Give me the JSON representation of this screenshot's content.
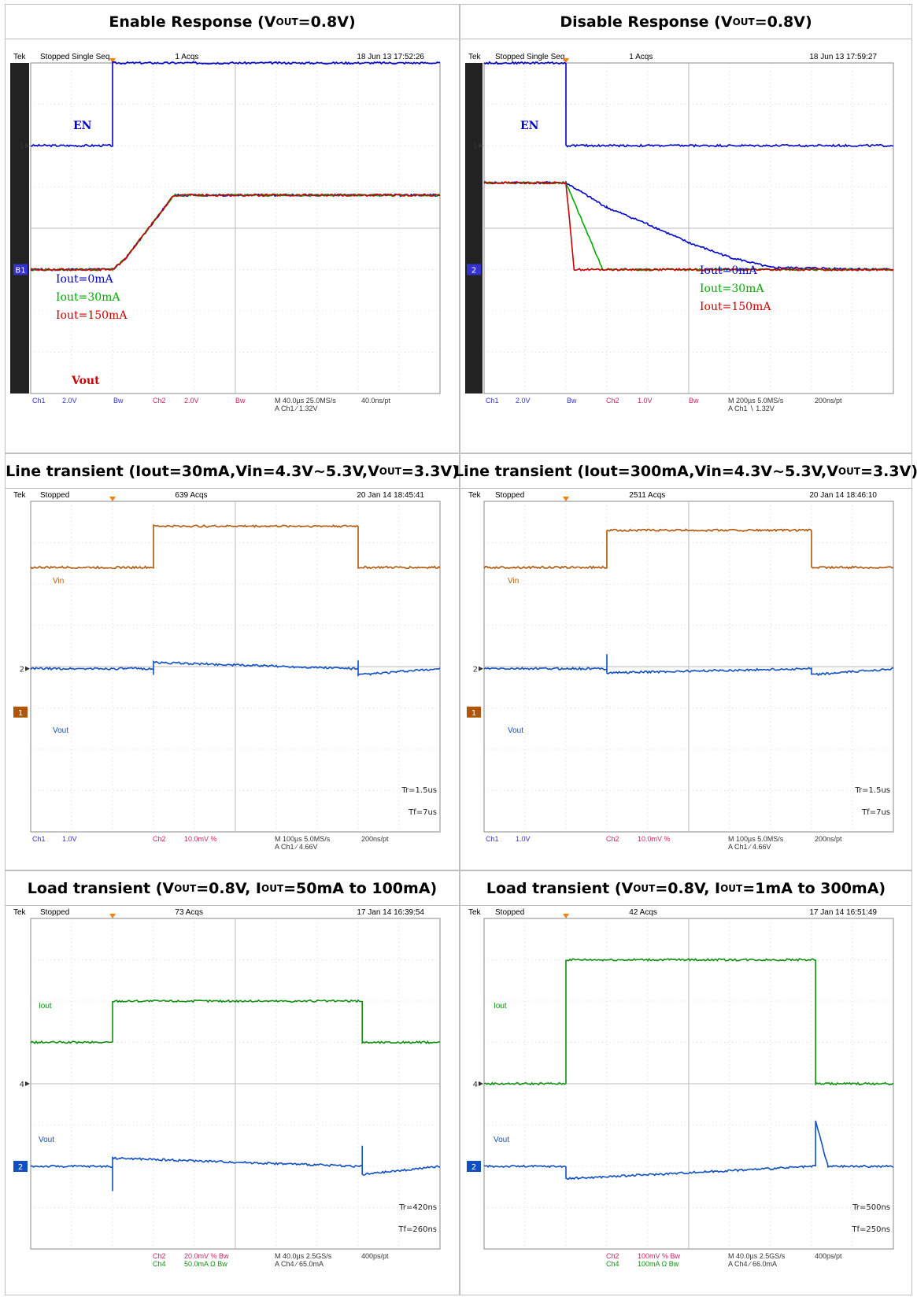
{
  "panels": [
    {
      "title": "Enable Response (V<sub>OUT</sub>=0.8V)",
      "header": {
        "brand": "Tek",
        "status": "Stopped  Single Seq",
        "acqs": "1 Acqs",
        "timestamp": "18 Jun 13 17:52:26"
      },
      "footer": {
        "ch1": "Ch1",
        "ch1_scale": "2.0V",
        "ch1_bw": "Bw",
        "ch2": "Ch2",
        "ch2_scale": "2.0V",
        "ch2_bw": "Bw",
        "timebase": "M 40.0µs 25.0MS/s",
        "trigger": "A  Ch1  ∕  1.32V",
        "rate": "40.0ns/pt",
        "ch4": "",
        "ch4_scale": "",
        "tr": "",
        "tf": ""
      },
      "markers": {
        "top": "1",
        "bottom": "B1"
      },
      "labels": [
        {
          "text": "EN",
          "color": "#0000cc"
        },
        {
          "text": "Iout=0mA",
          "color": "#0000cc"
        },
        {
          "text": "Iout=30mA",
          "color": "#00aa00"
        },
        {
          "text": "Iout=150mA",
          "color": "#cc0000"
        },
        {
          "text": "Vout",
          "color": "#cc0000"
        }
      ]
    },
    {
      "title": "Disable Response (V<sub>OUT</sub>=0.8V)",
      "header": {
        "brand": "Tek",
        "status": "Stopped  Single Seq",
        "acqs": "1 Acqs",
        "timestamp": "18 Jun 13 17:59:27"
      },
      "footer": {
        "ch1": "Ch1",
        "ch1_scale": "2.0V",
        "ch1_bw": "Bw",
        "ch2": "Ch2",
        "ch2_scale": "1.0V",
        "ch2_bw": "Bw",
        "timebase": "M 200µs 5.0MS/s",
        "trigger": "A  Ch1  ∖  1.32V",
        "rate": "200ns/pt",
        "ch4": "",
        "ch4_scale": "",
        "tr": "",
        "tf": ""
      },
      "markers": {
        "top": "1",
        "bottom": "2"
      },
      "labels": [
        {
          "text": "EN",
          "color": "#0000cc"
        },
        {
          "text": "Iout=0mA",
          "color": "#0000cc"
        },
        {
          "text": "Iout=30mA",
          "color": "#00aa00"
        },
        {
          "text": "Iout=150mA",
          "color": "#cc0000"
        }
      ]
    },
    {
      "title": "Line transient (Iout=30mA,Vin=4.3V~5.3V,V<sub>OUT</sub>=3.3V)",
      "header": {
        "brand": "Tek",
        "status": "Stopped",
        "acqs": "639 Acqs",
        "timestamp": "20 Jan 14 18:45:41"
      },
      "footer": {
        "ch1": "Ch1",
        "ch1_scale": "1.0V",
        "ch1_bw": "",
        "ch2": "Ch2",
        "ch2_scale": "10.0mV  %",
        "ch2_bw": "",
        "timebase": "M 100µs 5.0MS/s",
        "trigger": "A  Ch1  ∕  4.66V",
        "rate": "200ns/pt",
        "ch4": "",
        "ch4_scale": "",
        "tr": "Tr=1.5us",
        "tf": "Tf=7us"
      },
      "markers": {
        "top": "2",
        "bottom": "1"
      },
      "labels": [
        {
          "text": "Vin",
          "color": "#b0560a"
        },
        {
          "text": "Vout",
          "color": "#1050c0"
        }
      ]
    },
    {
      "title": "Line transient (Iout=300mA,Vin=4.3V~5.3V,V<sub>OUT</sub>=3.3V)",
      "header": {
        "brand": "Tek",
        "status": "Stopped",
        "acqs": "2511 Acqs",
        "timestamp": "20 Jan 14 18:46:10"
      },
      "footer": {
        "ch1": "Ch1",
        "ch1_scale": "1.0V",
        "ch1_bw": "",
        "ch2": "Ch2",
        "ch2_scale": "10.0mV  %",
        "ch2_bw": "",
        "timebase": "M 100µs 5.0MS/s",
        "trigger": "A  Ch1  ∕  4.66V",
        "rate": "200ns/pt",
        "ch4": "",
        "ch4_scale": "",
        "tr": "Tr=1.5us",
        "tf": "Tf=7us"
      },
      "markers": {
        "top": "2",
        "bottom": "1"
      },
      "labels": [
        {
          "text": "Vin",
          "color": "#b0560a"
        },
        {
          "text": "Vout",
          "color": "#1050c0"
        }
      ]
    },
    {
      "title": "Load transient (V<sub>OUT</sub>=0.8V, I<sub>OUT</sub>=50mA to 100mA)",
      "header": {
        "brand": "Tek",
        "status": "Stopped",
        "acqs": "73 Acqs",
        "timestamp": "17 Jan 14 16:39:54"
      },
      "footer": {
        "ch1": "",
        "ch1_scale": "",
        "ch1_bw": "",
        "ch2": "Ch2",
        "ch2_scale": "20.0mV  %  Bw",
        "ch2_bw": "",
        "timebase": "M 40.0µs 2.5GS/s",
        "trigger": "A  Ch4  ∕  65.0mA",
        "rate": "400ps/pt",
        "ch4": "Ch4",
        "ch4_scale": "50.0mA  Ω  Bw",
        "tr": "Tr=420ns",
        "tf": "Tf=260ns"
      },
      "markers": {
        "top": "4",
        "bottom": "2"
      },
      "labels": [
        {
          "text": "Iout",
          "color": "#109010"
        },
        {
          "text": "Vout",
          "color": "#1050c0"
        }
      ]
    },
    {
      "title": "Load transient (V<sub>OUT</sub>=0.8V, I<sub>OUT</sub>=1mA to 300mA)",
      "header": {
        "brand": "Tek",
        "status": "Stopped",
        "acqs": "42 Acqs",
        "timestamp": "17 Jan 14 16:51:49"
      },
      "footer": {
        "ch1": "",
        "ch1_scale": "",
        "ch1_bw": "",
        "ch2": "Ch2",
        "ch2_scale": "100mV  %  Bw",
        "ch2_bw": "",
        "timebase": "M 40.0µs 2.5GS/s",
        "trigger": "A  Ch4  ∕  66.0mA",
        "rate": "400ps/pt",
        "ch4": "Ch4",
        "ch4_scale": "100mA  Ω  Bw",
        "tr": "Tr=500ns",
        "tf": "Tf=250ns"
      },
      "markers": {
        "top": "4",
        "bottom": "2"
      },
      "labels": [
        {
          "text": "Iout",
          "color": "#109010"
        },
        {
          "text": "Vout",
          "color": "#1050c0"
        }
      ]
    }
  ],
  "chart_data": [
    {
      "type": "line",
      "title": "Enable Response (VOUT=0.8V)",
      "x_divisions": 10,
      "y_divisions": 8,
      "series": [
        {
          "name": "EN",
          "color": "#0000cc",
          "points": [
            [
              0,
              2.0
            ],
            [
              2,
              2.0
            ],
            [
              2,
              4.0
            ],
            [
              10,
              4.0
            ]
          ]
        },
        {
          "name": "Iout=0mA",
          "color": "#0000cc",
          "points": [
            [
              0,
              -1.0
            ],
            [
              2,
              -1.0
            ],
            [
              2.3,
              -0.75
            ],
            [
              3.5,
              0.8
            ],
            [
              10,
              0.8
            ]
          ]
        },
        {
          "name": "Iout=30mA",
          "color": "#00aa00",
          "points": [
            [
              0,
              -1.0
            ],
            [
              2,
              -1.0
            ],
            [
              2.3,
              -0.75
            ],
            [
              3.5,
              0.8
            ],
            [
              10,
              0.8
            ]
          ]
        },
        {
          "name": "Iout=150mA",
          "color": "#cc0000",
          "points": [
            [
              0,
              -1.0
            ],
            [
              2,
              -1.0
            ],
            [
              2.3,
              -0.75
            ],
            [
              3.5,
              0.8
            ],
            [
              10,
              0.8
            ]
          ]
        }
      ]
    },
    {
      "type": "line",
      "title": "Disable Response (VOUT=0.8V)",
      "x_divisions": 10,
      "y_divisions": 8,
      "series": [
        {
          "name": "EN",
          "color": "#0000cc",
          "points": [
            [
              0,
              4.0
            ],
            [
              2,
              4.0
            ],
            [
              2,
              2.0
            ],
            [
              10,
              2.0
            ]
          ]
        },
        {
          "name": "Iout=0mA",
          "color": "#0000cc",
          "points": [
            [
              0,
              1.1
            ],
            [
              2,
              1.1
            ],
            [
              3,
              0.5
            ],
            [
              4,
              0.1
            ],
            [
              5,
              -0.35
            ],
            [
              6,
              -0.7
            ],
            [
              7,
              -0.95
            ],
            [
              10,
              -1.0
            ]
          ]
        },
        {
          "name": "Iout=30mA",
          "color": "#00aa00",
          "points": [
            [
              0,
              1.1
            ],
            [
              2,
              1.1
            ],
            [
              2.9,
              -1.0
            ],
            [
              10,
              -1.0
            ]
          ]
        },
        {
          "name": "Iout=150mA",
          "color": "#cc0000",
          "points": [
            [
              0,
              1.1
            ],
            [
              2,
              1.1
            ],
            [
              2.2,
              -1.0
            ],
            [
              10,
              -1.0
            ]
          ]
        }
      ]
    },
    {
      "type": "line",
      "title": "Line transient (Iout=30mA,Vin=4.3V~5.3V,VOUT=3.3V)",
      "x_divisions": 10,
      "y_divisions": 8,
      "series": [
        {
          "name": "Vin",
          "color": "#b0560a",
          "points": [
            [
              0,
              2.4
            ],
            [
              3,
              2.4
            ],
            [
              3,
              3.4
            ],
            [
              8,
              3.4
            ],
            [
              8,
              2.4
            ],
            [
              10,
              2.4
            ]
          ]
        },
        {
          "name": "Vout",
          "color": "#1050c0",
          "points": [
            [
              0,
              -0.05
            ],
            [
              3,
              -0.05
            ],
            [
              3,
              -0.2
            ],
            [
              3,
              0.1
            ],
            [
              8,
              -0.05
            ],
            [
              8,
              0.15
            ],
            [
              8,
              -0.2
            ],
            [
              10,
              -0.05
            ]
          ]
        }
      ]
    },
    {
      "type": "line",
      "title": "Line transient (Iout=300mA,Vin=4.3V~5.3V,VOUT=3.3V)",
      "x_divisions": 10,
      "y_divisions": 8,
      "series": [
        {
          "name": "Vin",
          "color": "#b0560a",
          "points": [
            [
              0,
              2.4
            ],
            [
              3,
              2.4
            ],
            [
              3,
              3.3
            ],
            [
              8,
              3.3
            ],
            [
              8,
              2.4
            ],
            [
              10,
              2.4
            ]
          ]
        },
        {
          "name": "Vout",
          "color": "#1050c0",
          "points": [
            [
              0,
              -0.05
            ],
            [
              3,
              -0.05
            ],
            [
              3,
              0.3
            ],
            [
              3,
              -0.15
            ],
            [
              8,
              -0.05
            ],
            [
              8,
              -0.2
            ],
            [
              10,
              -0.05
            ]
          ]
        }
      ]
    },
    {
      "type": "line",
      "title": "Load transient (VOUT=0.8V, IOUT=50mA to 100mA)",
      "x_divisions": 10,
      "y_divisions": 8,
      "series": [
        {
          "name": "Iout",
          "color": "#109010",
          "points": [
            [
              0,
              1.0
            ],
            [
              2,
              1.0
            ],
            [
              2,
              2.0
            ],
            [
              8.1,
              2.0
            ],
            [
              8.1,
              1.0
            ],
            [
              10,
              1.0
            ]
          ]
        },
        {
          "name": "Vout",
          "color": "#1050c0",
          "points": [
            [
              0,
              -2.0
            ],
            [
              2,
              -2.0
            ],
            [
              2,
              -2.6
            ],
            [
              2,
              -1.8
            ],
            [
              8.1,
              -2.0
            ],
            [
              8.1,
              -1.5
            ],
            [
              8.1,
              -2.2
            ],
            [
              10,
              -2.0
            ]
          ]
        }
      ]
    },
    {
      "type": "line",
      "title": "Load transient (VOUT=0.8V, IOUT=1mA to 300mA)",
      "x_divisions": 10,
      "y_divisions": 8,
      "series": [
        {
          "name": "Iout",
          "color": "#109010",
          "points": [
            [
              0,
              0
            ],
            [
              2,
              0
            ],
            [
              2,
              3.0
            ],
            [
              8.1,
              3.0
            ],
            [
              8.1,
              0
            ],
            [
              10,
              0
            ]
          ]
        },
        {
          "name": "Vout",
          "color": "#1050c0",
          "points": [
            [
              0,
              -2.0
            ],
            [
              2,
              -2.0
            ],
            [
              2,
              -2.3
            ],
            [
              8.1,
              -2.0
            ],
            [
              8.1,
              -0.9
            ],
            [
              8.4,
              -2.0
            ],
            [
              10,
              -2.0
            ]
          ]
        }
      ]
    }
  ]
}
